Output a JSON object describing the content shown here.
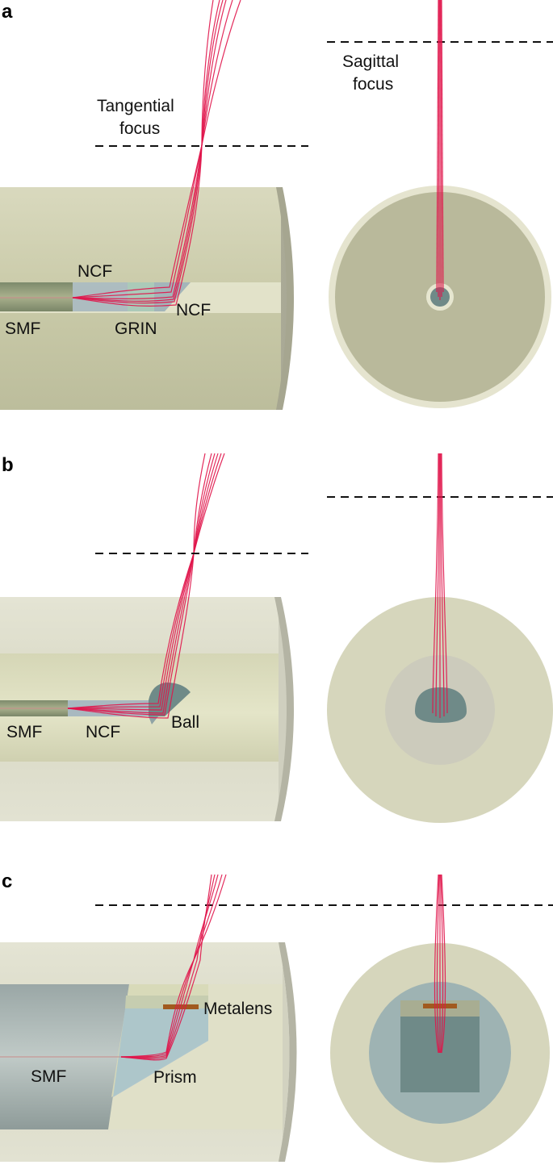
{
  "panels": [
    {
      "letter": "a",
      "labels": {
        "tangential_line1": "Tangential",
        "tangential_line2": "focus",
        "sagittal_line1": "Sagittal",
        "sagittal_line2": "focus",
        "ncf_top": "NCF",
        "smf": "SMF",
        "grin": "GRIN",
        "ncf_right": "NCF"
      }
    },
    {
      "letter": "b",
      "labels": {
        "smf": "SMF",
        "ncf": "NCF",
        "ball": "Ball"
      }
    },
    {
      "letter": "c",
      "labels": {
        "metalens": "Metalens",
        "smf": "SMF",
        "prism": "Prism"
      }
    }
  ],
  "colors": {
    "outer_tube": "#dcdcc6",
    "inner_tube": "#d3d4b4",
    "cladding_face": "#b9b9a0",
    "ray": "#e0144a",
    "core": "#6f8a88"
  }
}
